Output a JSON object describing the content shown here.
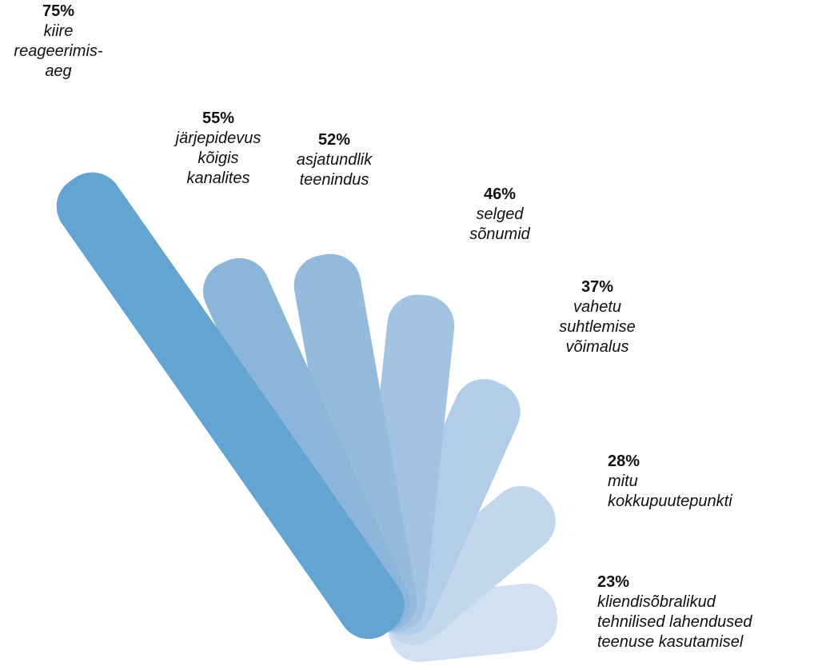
{
  "chart_data": {
    "type": "bar",
    "categories": [
      "kiire reageerimisaeg",
      "järjepidevus kõigis kanalites",
      "asjatundlik teenindus",
      "selged sõnumid",
      "vahetu suhtlemise võimalus",
      "mitu kokkupuutepunkti",
      "kliendisõbralikud tehnilised lahendused teenuse kasutamisel"
    ],
    "values": [
      75,
      55,
      52,
      46,
      37,
      28,
      23
    ],
    "unit": "%",
    "title": "",
    "xlabel": "",
    "ylabel": "",
    "colors": [
      "#63a5d2",
      "#8cb5da",
      "#94bbde",
      "#a2c3e2",
      "#b1cde7",
      "#c2d7ec",
      "#d1e1f1"
    ],
    "labels": [
      {
        "pct": "75%",
        "text": "kiire\nreageerimis-\naeg"
      },
      {
        "pct": "55%",
        "text": "järjepidevus\nkõigis\nkanalites"
      },
      {
        "pct": "52%",
        "text": "asjatundlik\nteenindus"
      },
      {
        "pct": "46%",
        "text": "selged\nsõnumid"
      },
      {
        "pct": "37%",
        "text": "vahetu\nsuhtlemise\nvõimalus"
      },
      {
        "pct": "28%",
        "text": "mitu\nkokkupuutepunkti"
      },
      {
        "pct": "23%",
        "text": "kliendisõbralikud\ntehnilised lahendused\nteenuse kasutamisel"
      }
    ]
  }
}
